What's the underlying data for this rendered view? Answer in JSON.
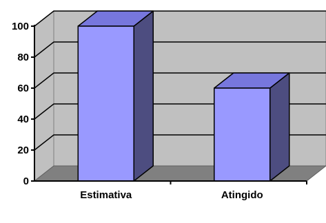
{
  "chart_data": {
    "type": "bar",
    "style": "3d-column",
    "categories": [
      "Estimativa",
      "Atingido"
    ],
    "values": [
      100,
      60
    ],
    "ylim": [
      0,
      100
    ],
    "yticks": [
      "0",
      "20",
      "40",
      "60",
      "80",
      "100"
    ],
    "grid": true,
    "legend": "none",
    "colors": {
      "bar_front": "#9999ff",
      "bar_top": "#7777dd",
      "bar_side": "#4d4d80",
      "wall": "#c0c0c0",
      "floor": "#808080"
    }
  }
}
